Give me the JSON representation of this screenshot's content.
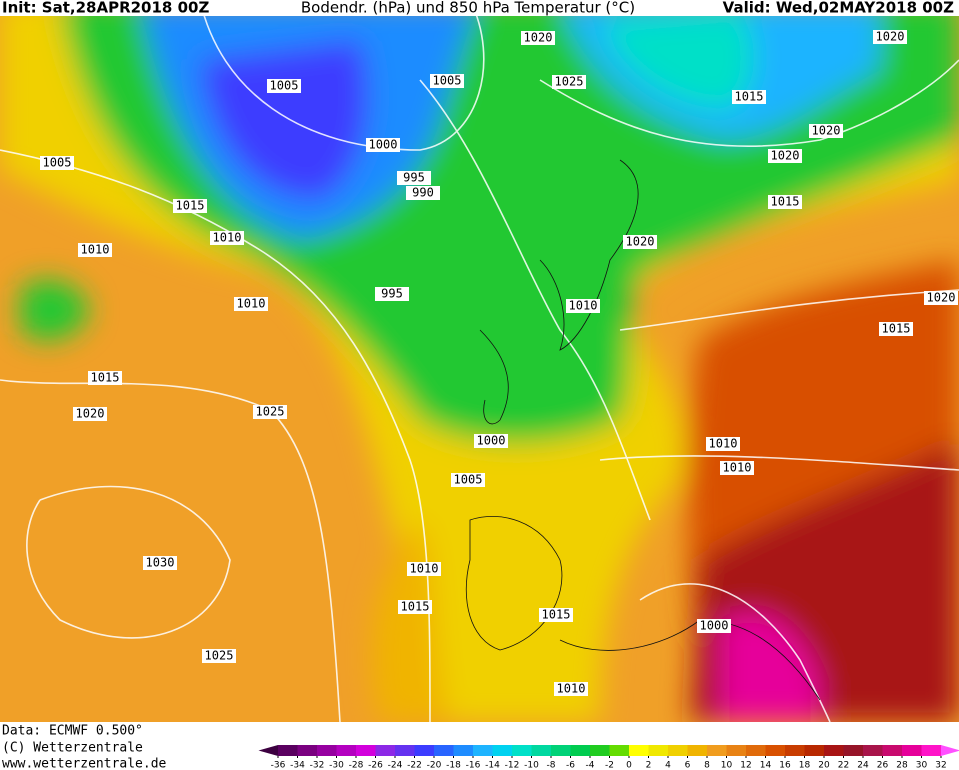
{
  "header": {
    "init": "Init: Sat,28APR2018 00Z",
    "title": "Bodendr. (hPa) und 850 hPa Temperatur (°C)",
    "valid": "Valid: Wed,02MAY2018 00Z"
  },
  "isobar_labels": [
    "1020",
    "1025",
    "1005",
    "1005",
    "1015",
    "1020",
    "1020",
    "1020",
    "1000",
    "995",
    "990",
    "1005",
    "1015",
    "1010",
    "1015",
    "1020",
    "1010",
    "995",
    "1010",
    "1010",
    "1020",
    "1015",
    "1015",
    "1020",
    "1025",
    "1000",
    "1010",
    "1010",
    "1005",
    "1030",
    "1010",
    "1015",
    "1015",
    "1000",
    "1025",
    "1010"
  ],
  "footer": {
    "data": "Data: ECMWF  0.500°",
    "copyright": "(C) Wetterzentrale",
    "url": "www.wetterzentrale.de"
  },
  "colorbar": {
    "ticks": [
      -36,
      -34,
      -32,
      -30,
      -28,
      -26,
      -24,
      -22,
      -20,
      -18,
      -16,
      -14,
      -12,
      -10,
      -8,
      -6,
      -4,
      -2,
      0,
      2,
      4,
      6,
      8,
      10,
      12,
      14,
      16,
      18,
      20,
      22,
      24,
      26,
      28,
      30,
      32
    ],
    "colors": [
      "#3c0040",
      "#5a0060",
      "#7a0080",
      "#9600a0",
      "#b400c0",
      "#d200dc",
      "#8c28e6",
      "#6432f0",
      "#3c3cff",
      "#2864ff",
      "#1e8cff",
      "#1eb4ff",
      "#00d2f0",
      "#00e0c8",
      "#00d8a0",
      "#00d278",
      "#00cc50",
      "#20cc20",
      "#64dc00",
      "#ffff00",
      "#f0e800",
      "#f0d000",
      "#f0b400",
      "#f09c1e",
      "#e88214",
      "#e06a0a",
      "#d85000",
      "#c83c00",
      "#b82800",
      "#a81414",
      "#961428",
      "#a8144a",
      "#c80a6e",
      "#e6009a",
      "#ff14c8",
      "#ff50ff"
    ]
  }
}
